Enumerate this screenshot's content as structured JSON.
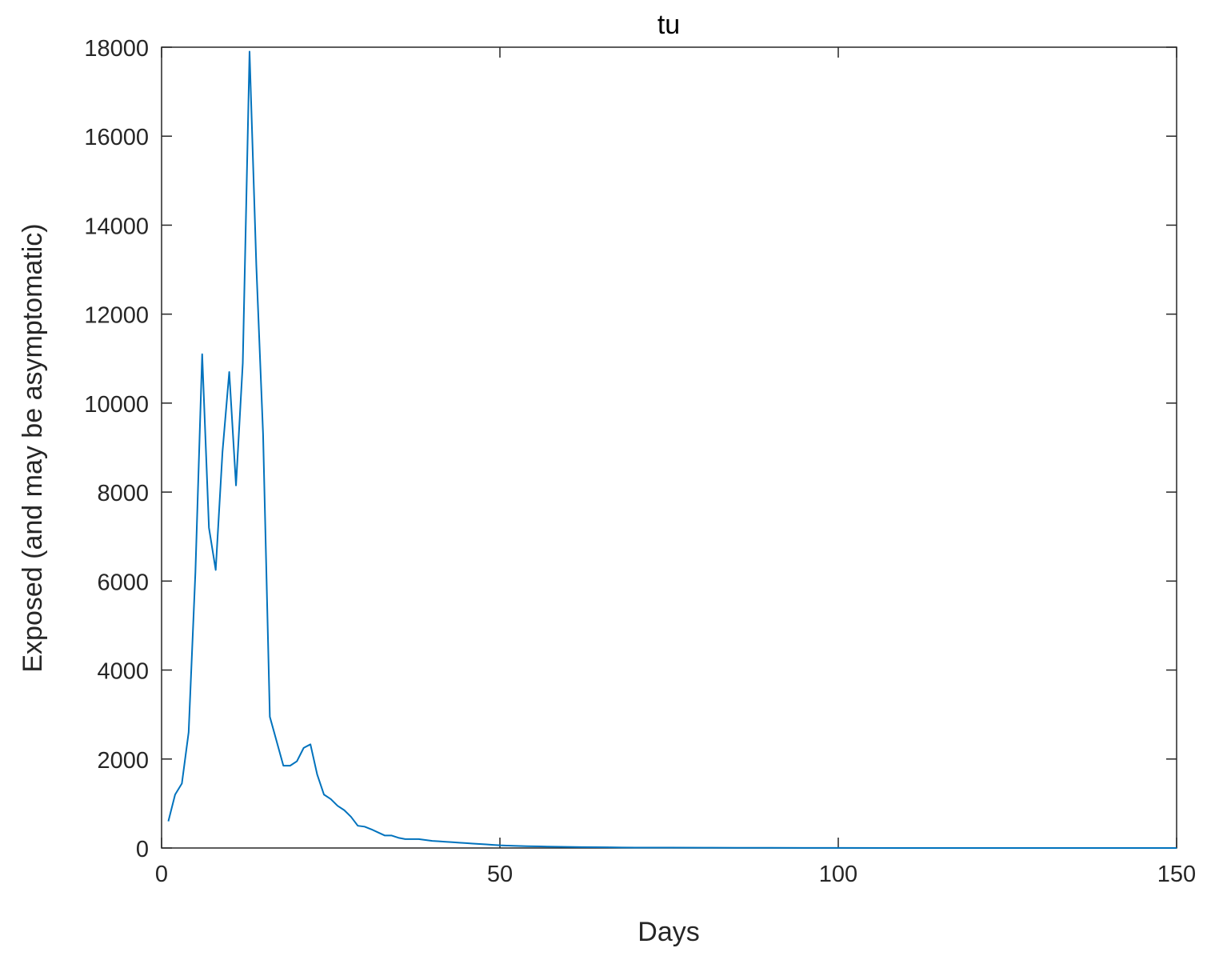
{
  "chart_data": {
    "type": "line",
    "title": "tu",
    "xlabel": "Days",
    "ylabel": "Exposed (and may be asymptomatic)",
    "xlim": [
      0,
      150
    ],
    "ylim": [
      0,
      18000
    ],
    "xticks": [
      0,
      50,
      100,
      150
    ],
    "yticks": [
      0,
      2000,
      4000,
      6000,
      8000,
      10000,
      12000,
      14000,
      16000,
      18000
    ],
    "grid": false,
    "legend": "none",
    "series": [
      {
        "color": "#0072BD",
        "x": [
          1,
          2,
          3,
          4,
          5,
          6,
          7,
          8,
          9,
          10,
          11,
          12,
          13,
          14,
          15,
          16,
          17,
          18,
          19,
          20,
          21,
          22,
          23,
          24,
          25,
          26,
          27,
          28,
          29,
          30,
          31,
          32,
          33,
          34,
          35,
          36,
          37,
          38,
          39,
          40,
          41,
          42,
          43,
          44,
          45,
          46,
          47,
          48,
          49,
          50,
          51,
          52,
          53,
          54,
          55,
          56,
          57,
          58,
          59,
          60,
          62,
          64,
          66,
          68,
          70,
          75,
          80,
          85,
          90,
          95,
          100,
          110,
          120,
          130,
          140,
          150
        ],
        "y": [
          600,
          1200,
          1450,
          2600,
          6200,
          11100,
          7200,
          6250,
          8900,
          10700,
          8150,
          10900,
          17900,
          13100,
          9300,
          2950,
          2400,
          1850,
          1850,
          1950,
          2250,
          2330,
          1650,
          1200,
          1100,
          950,
          850,
          700,
          500,
          480,
          420,
          350,
          280,
          280,
          230,
          200,
          200,
          200,
          180,
          160,
          150,
          140,
          130,
          120,
          110,
          100,
          90,
          80,
          70,
          60,
          55,
          50,
          45,
          40,
          38,
          35,
          32,
          30,
          28,
          25,
          20,
          18,
          15,
          12,
          10,
          8,
          6,
          5,
          4,
          3,
          2,
          1,
          1,
          0,
          0,
          0
        ]
      }
    ]
  }
}
